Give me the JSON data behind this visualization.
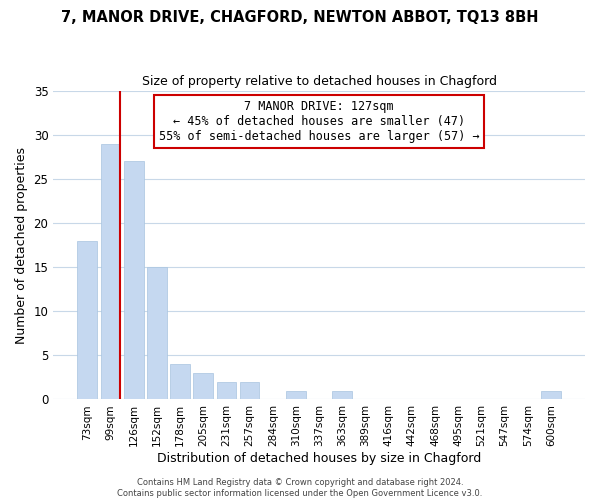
{
  "title": "7, MANOR DRIVE, CHAGFORD, NEWTON ABBOT, TQ13 8BH",
  "subtitle": "Size of property relative to detached houses in Chagford",
  "xlabel": "Distribution of detached houses by size in Chagford",
  "ylabel": "Number of detached properties",
  "bar_labels": [
    "73sqm",
    "99sqm",
    "126sqm",
    "152sqm",
    "178sqm",
    "205sqm",
    "231sqm",
    "257sqm",
    "284sqm",
    "310sqm",
    "337sqm",
    "363sqm",
    "389sqm",
    "416sqm",
    "442sqm",
    "468sqm",
    "495sqm",
    "521sqm",
    "547sqm",
    "574sqm",
    "600sqm"
  ],
  "bar_values": [
    18,
    29,
    27,
    15,
    4,
    3,
    2,
    2,
    0,
    1,
    0,
    1,
    0,
    0,
    0,
    0,
    0,
    0,
    0,
    0,
    1
  ],
  "bar_color": "#c5d8f0",
  "bar_edge_color": "#a8c4e0",
  "highlight_line_color": "#cc0000",
  "ylim": [
    0,
    35
  ],
  "yticks": [
    0,
    5,
    10,
    15,
    20,
    25,
    30,
    35
  ],
  "annotation_title": "7 MANOR DRIVE: 127sqm",
  "annotation_line1": "← 45% of detached houses are smaller (47)",
  "annotation_line2": "55% of semi-detached houses are larger (57) →",
  "annotation_box_color": "#ffffff",
  "annotation_box_edge": "#cc0000",
  "footer_line1": "Contains HM Land Registry data © Crown copyright and database right 2024.",
  "footer_line2": "Contains public sector information licensed under the Open Government Licence v3.0.",
  "background_color": "#ffffff",
  "grid_color": "#c8d8e8"
}
